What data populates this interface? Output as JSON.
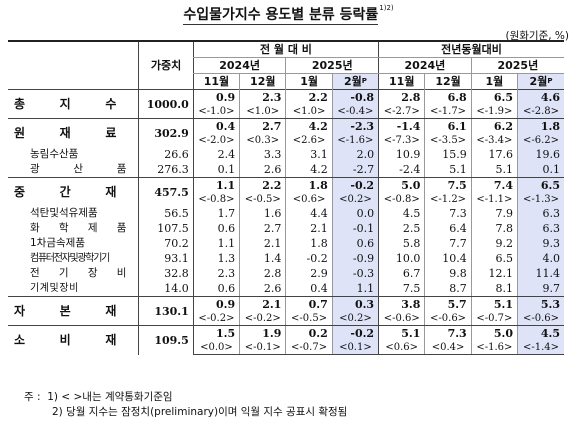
{
  "title": "수입물가지수 용도별 분류 등락률",
  "title_note": "1)2)",
  "unit": "(원화기준, %)",
  "header": {
    "weight_label": "가중치",
    "mom_label": "전 월 대 비",
    "yoy_label": "전년동월대비",
    "year_2024": "2024년",
    "year_2025": "2025년",
    "m11": "11월",
    "m12": "12월",
    "m1": "1월",
    "m2": "2월",
    "prelim_mark": "P"
  },
  "rows": [
    {
      "label": "총 지 수",
      "weight": "1000.0",
      "mom": [
        "0.9",
        "2.3",
        "2.2",
        "-0.8"
      ],
      "yoy": [
        "2.8",
        "6.8",
        "6.5",
        "4.6"
      ],
      "mom_c": [
        "<-1.0>",
        "<1.0>",
        "<1.0>",
        "<-0.4>"
      ],
      "yoy_c": [
        "<-2.7>",
        "<-1.7>",
        "<-1.9>",
        "<-2.8>"
      ]
    },
    {
      "label": "원 재 료",
      "weight": "302.9",
      "mom": [
        "0.4",
        "2.7",
        "4.2",
        "-2.3"
      ],
      "yoy": [
        "-1.4",
        "6.1",
        "6.2",
        "1.8"
      ],
      "mom_c": [
        "<-2.0>",
        "<0.3>",
        "<2.6>",
        "<-1.6>"
      ],
      "yoy_c": [
        "<-7.3>",
        "<-3.5>",
        "<-3.4>",
        "<-6.2>"
      ]
    },
    {
      "label": "농림수산품",
      "weight": "26.6",
      "mom": [
        "2.4",
        "3.3",
        "3.1",
        "2.0"
      ],
      "yoy": [
        "10.9",
        "15.9",
        "17.6",
        "19.6"
      ]
    },
    {
      "label": "광 산 품",
      "weight": "276.3",
      "mom": [
        "0.1",
        "2.6",
        "4.2",
        "-2.7"
      ],
      "yoy": [
        "-2.4",
        "5.1",
        "5.1",
        "0.1"
      ]
    },
    {
      "label": "중 간 재",
      "weight": "457.5",
      "mom": [
        "1.1",
        "2.2",
        "1.8",
        "-0.2"
      ],
      "yoy": [
        "5.0",
        "7.5",
        "7.4",
        "6.5"
      ],
      "mom_c": [
        "<-0.8>",
        "<-0.5>",
        "<0.6>",
        "<0.2>"
      ],
      "yoy_c": [
        "<-0.8>",
        "<-1.2>",
        "<-1.1>",
        "<-1.3>"
      ]
    },
    {
      "label": "석탄및석유제품",
      "weight": "56.5",
      "mom": [
        "1.7",
        "1.6",
        "4.4",
        "0.0"
      ],
      "yoy": [
        "4.5",
        "7.3",
        "7.9",
        "6.3"
      ]
    },
    {
      "label": "화 학 제 품",
      "weight": "107.5",
      "mom": [
        "0.6",
        "2.7",
        "2.1",
        "-0.1"
      ],
      "yoy": [
        "2.5",
        "6.4",
        "7.8",
        "6.3"
      ]
    },
    {
      "label": "1차금속제품",
      "weight": "70.2",
      "mom": [
        "1.1",
        "2.1",
        "1.8",
        "0.6"
      ],
      "yoy": [
        "5.8",
        "7.7",
        "9.2",
        "9.3"
      ]
    },
    {
      "label": "컴퓨터전자및광학기기",
      "weight": "93.1",
      "mom": [
        "1.3",
        "1.4",
        "-0.2",
        "-0.9"
      ],
      "yoy": [
        "10.0",
        "10.4",
        "6.5",
        "4.0"
      ]
    },
    {
      "label": "전 기 장 비",
      "weight": "32.8",
      "mom": [
        "2.3",
        "2.8",
        "2.9",
        "-0.3"
      ],
      "yoy": [
        "6.7",
        "9.8",
        "12.1",
        "11.4"
      ]
    },
    {
      "label": "기 계 및 장 비",
      "weight": "14.0",
      "mom": [
        "0.6",
        "2.6",
        "0.4",
        "1.1"
      ],
      "yoy": [
        "7.5",
        "8.7",
        "8.1",
        "9.7"
      ]
    },
    {
      "label": "자 본 재",
      "weight": "130.1",
      "mom": [
        "0.9",
        "2.1",
        "0.7",
        "0.3"
      ],
      "yoy": [
        "3.8",
        "5.7",
        "5.1",
        "5.3"
      ],
      "mom_c": [
        "<-0.2>",
        "<-0.2>",
        "<-0.5>",
        "<0.2>"
      ],
      "yoy_c": [
        "<-0.6>",
        "<-0.6>",
        "<-0.7>",
        "<-0.6>"
      ]
    },
    {
      "label": "소 비 재",
      "weight": "109.5",
      "mom": [
        "1.5",
        "1.9",
        "0.2",
        "-0.2"
      ],
      "yoy": [
        "5.1",
        "7.3",
        "5.0",
        "4.5"
      ],
      "mom_c": [
        "<0.0>",
        "<-0.1>",
        "<-0.7>",
        "<0.1>"
      ],
      "yoy_c": [
        "<0.6>",
        "<0.4>",
        "<-1.6>",
        "<-1.4>"
      ]
    }
  ],
  "footnotes": {
    "lead": "주 :",
    "note1": "1) < >내는 계약통화기준임",
    "note2": "2) 당월 지수는 잠정치(preliminary)이며 익월 지수 공표시 확정됨"
  },
  "colors": {
    "highlight": "#dfe3f7"
  }
}
